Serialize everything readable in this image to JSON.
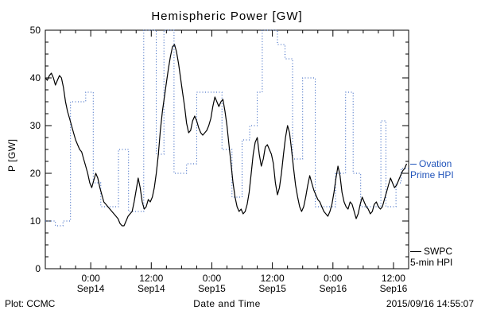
{
  "title": "Hemispheric Power [GW]",
  "footer": {
    "left": "Plot: CCMC",
    "right": "2015/09/16 14:55:07"
  },
  "legend": {
    "ovation": {
      "line1": "Ovation",
      "line2": "Prime HPI",
      "color": "#2255bb"
    },
    "swpc": {
      "line1": "SWPC",
      "line2": "5-min HPI",
      "color": "#000000"
    }
  },
  "chart_data": {
    "type": "line",
    "title": "Hemispheric Power [GW]",
    "xlabel": "Date and Time",
    "ylabel": "P [GW]",
    "ylim": [
      0,
      50
    ],
    "xlim_hours": [
      0,
      72
    ],
    "y_ticks": [
      0,
      10,
      20,
      30,
      40,
      50
    ],
    "y_minor_step": 2.5,
    "x_minor_step": 3,
    "x_ticks": [
      {
        "t": 9,
        "time": "0:00",
        "date": "Sep14"
      },
      {
        "t": 21,
        "time": "12:00",
        "date": "Sep14"
      },
      {
        "t": 33,
        "time": "0:00",
        "date": "Sep15"
      },
      {
        "t": 45,
        "time": "12:00",
        "date": "Sep15"
      },
      {
        "t": 57,
        "time": "0:00",
        "date": "Sep16"
      },
      {
        "t": 69,
        "time": "12:00",
        "date": "Sep16"
      }
    ],
    "series": [
      {
        "name": "Ovation Prime HPI",
        "style": "step-dotted",
        "color": "#2255bb",
        "steps": [
          [
            0,
            10
          ],
          [
            2,
            9
          ],
          [
            3.5,
            10
          ],
          [
            5,
            35
          ],
          [
            8,
            37
          ],
          [
            9.5,
            18
          ],
          [
            11,
            13
          ],
          [
            14.5,
            25
          ],
          [
            16.5,
            12
          ],
          [
            19.5,
            50
          ],
          [
            22,
            24
          ],
          [
            23.5,
            50
          ],
          [
            25.5,
            20
          ],
          [
            28,
            22
          ],
          [
            30,
            37
          ],
          [
            35,
            25
          ],
          [
            37,
            15
          ],
          [
            39,
            27
          ],
          [
            40.5,
            30
          ],
          [
            42,
            37
          ],
          [
            43,
            50
          ],
          [
            46,
            47
          ],
          [
            47.5,
            44
          ],
          [
            49,
            23
          ],
          [
            51,
            40
          ],
          [
            53.5,
            13
          ],
          [
            57.5,
            20
          ],
          [
            59.5,
            37
          ],
          [
            61,
            20
          ],
          [
            62.5,
            13
          ],
          [
            66.5,
            31
          ],
          [
            67.5,
            13
          ],
          [
            69.5,
            18
          ],
          [
            70.5,
            21
          ],
          [
            72,
            21
          ]
        ]
      },
      {
        "name": "SWPC 5-min HPI",
        "style": "line",
        "color": "#000000",
        "points": [
          [
            0,
            40
          ],
          [
            0.4,
            39.5
          ],
          [
            0.8,
            40.5
          ],
          [
            1.2,
            41
          ],
          [
            1.6,
            40
          ],
          [
            2,
            38.5
          ],
          [
            2.4,
            39.5
          ],
          [
            2.8,
            40.5
          ],
          [
            3.2,
            40
          ],
          [
            3.6,
            38
          ],
          [
            4,
            35
          ],
          [
            4.4,
            33
          ],
          [
            4.8,
            31.5
          ],
          [
            5.2,
            30
          ],
          [
            5.6,
            28.5
          ],
          [
            6,
            27
          ],
          [
            6.4,
            26
          ],
          [
            6.8,
            25
          ],
          [
            7.2,
            24.5
          ],
          [
            7.6,
            23
          ],
          [
            8,
            21.5
          ],
          [
            8.4,
            20
          ],
          [
            8.8,
            18
          ],
          [
            9.2,
            17
          ],
          [
            9.6,
            18.5
          ],
          [
            10,
            20
          ],
          [
            10.4,
            19
          ],
          [
            10.8,
            17
          ],
          [
            11.2,
            15.5
          ],
          [
            11.6,
            14
          ],
          [
            12,
            13.5
          ],
          [
            12.4,
            13
          ],
          [
            12.8,
            12.5
          ],
          [
            13.2,
            12
          ],
          [
            13.6,
            11.5
          ],
          [
            14,
            11
          ],
          [
            14.4,
            10.5
          ],
          [
            14.8,
            9.5
          ],
          [
            15.2,
            9
          ],
          [
            15.6,
            9
          ],
          [
            16,
            10
          ],
          [
            16.4,
            11
          ],
          [
            16.8,
            11.5
          ],
          [
            17.2,
            12
          ],
          [
            17.6,
            14
          ],
          [
            18,
            16.5
          ],
          [
            18.4,
            19
          ],
          [
            18.8,
            17
          ],
          [
            19.2,
            14
          ],
          [
            19.6,
            12.5
          ],
          [
            20,
            13
          ],
          [
            20.4,
            14.5
          ],
          [
            20.8,
            14
          ],
          [
            21.2,
            15
          ],
          [
            21.6,
            17
          ],
          [
            22,
            20
          ],
          [
            22.4,
            24
          ],
          [
            22.8,
            29
          ],
          [
            23.2,
            33
          ],
          [
            23.6,
            36
          ],
          [
            24,
            39
          ],
          [
            24.4,
            42
          ],
          [
            24.8,
            44.5
          ],
          [
            25.2,
            46.5
          ],
          [
            25.6,
            47
          ],
          [
            26,
            45.5
          ],
          [
            26.4,
            43
          ],
          [
            26.8,
            40
          ],
          [
            27.2,
            37
          ],
          [
            27.6,
            34
          ],
          [
            28,
            30.5
          ],
          [
            28.4,
            28.5
          ],
          [
            28.8,
            29
          ],
          [
            29.2,
            31
          ],
          [
            29.6,
            32
          ],
          [
            30,
            31
          ],
          [
            30.4,
            29.5
          ],
          [
            30.8,
            28.5
          ],
          [
            31.2,
            28
          ],
          [
            31.6,
            28.5
          ],
          [
            32,
            29
          ],
          [
            32.4,
            30
          ],
          [
            32.8,
            31.5
          ],
          [
            33.2,
            34
          ],
          [
            33.6,
            36
          ],
          [
            34,
            35
          ],
          [
            34.4,
            34
          ],
          [
            34.8,
            35
          ],
          [
            35.2,
            35.5
          ],
          [
            35.6,
            33
          ],
          [
            36,
            30
          ],
          [
            36.4,
            26
          ],
          [
            36.8,
            22
          ],
          [
            37.2,
            18
          ],
          [
            37.6,
            15
          ],
          [
            38,
            13
          ],
          [
            38.4,
            12
          ],
          [
            38.8,
            12.5
          ],
          [
            39.2,
            11.5
          ],
          [
            39.6,
            12
          ],
          [
            40,
            13.5
          ],
          [
            40.4,
            16
          ],
          [
            40.8,
            20
          ],
          [
            41.2,
            24
          ],
          [
            41.6,
            26.5
          ],
          [
            42,
            27.5
          ],
          [
            42.4,
            24
          ],
          [
            42.8,
            21.5
          ],
          [
            43.2,
            23
          ],
          [
            43.6,
            25.5
          ],
          [
            44,
            26
          ],
          [
            44.4,
            25
          ],
          [
            44.8,
            24
          ],
          [
            45.2,
            22
          ],
          [
            45.6,
            18
          ],
          [
            46,
            15.5
          ],
          [
            46.4,
            17
          ],
          [
            46.8,
            20
          ],
          [
            47.2,
            24
          ],
          [
            47.6,
            27.5
          ],
          [
            48,
            30
          ],
          [
            48.4,
            28.5
          ],
          [
            48.8,
            25
          ],
          [
            49.2,
            21
          ],
          [
            49.6,
            17.5
          ],
          [
            50,
            15
          ],
          [
            50.4,
            13
          ],
          [
            50.8,
            12
          ],
          [
            51.2,
            13
          ],
          [
            51.6,
            15
          ],
          [
            52,
            17.5
          ],
          [
            52.4,
            19.5
          ],
          [
            52.8,
            18
          ],
          [
            53.2,
            16.5
          ],
          [
            53.6,
            15.5
          ],
          [
            54,
            14.5
          ],
          [
            54.4,
            14
          ],
          [
            54.8,
            13
          ],
          [
            55.2,
            12
          ],
          [
            55.6,
            11.5
          ],
          [
            56,
            11
          ],
          [
            56.4,
            12
          ],
          [
            56.8,
            13.5
          ],
          [
            57.2,
            16
          ],
          [
            57.6,
            19
          ],
          [
            58,
            21.5
          ],
          [
            58.4,
            19.5
          ],
          [
            58.8,
            16
          ],
          [
            59.2,
            14
          ],
          [
            59.6,
            13
          ],
          [
            60,
            12.5
          ],
          [
            60.4,
            14
          ],
          [
            60.8,
            13.5
          ],
          [
            61.2,
            12
          ],
          [
            61.6,
            10.5
          ],
          [
            62,
            11.5
          ],
          [
            62.4,
            13.5
          ],
          [
            62.8,
            15
          ],
          [
            63.2,
            14
          ],
          [
            63.6,
            13
          ],
          [
            64,
            12.5
          ],
          [
            64.4,
            11.5
          ],
          [
            64.8,
            12
          ],
          [
            65.2,
            13.5
          ],
          [
            65.6,
            14
          ],
          [
            66,
            13
          ],
          [
            66.4,
            12.5
          ],
          [
            66.8,
            13
          ],
          [
            67.2,
            14.5
          ],
          [
            67.6,
            16
          ],
          [
            68,
            17.5
          ],
          [
            68.4,
            19
          ],
          [
            68.8,
            18
          ],
          [
            69.2,
            17
          ],
          [
            69.6,
            17.5
          ],
          [
            70,
            18.5
          ],
          [
            70.4,
            19.5
          ],
          [
            70.8,
            20.5
          ],
          [
            71.2,
            21
          ],
          [
            71.6,
            22
          ]
        ]
      }
    ]
  }
}
